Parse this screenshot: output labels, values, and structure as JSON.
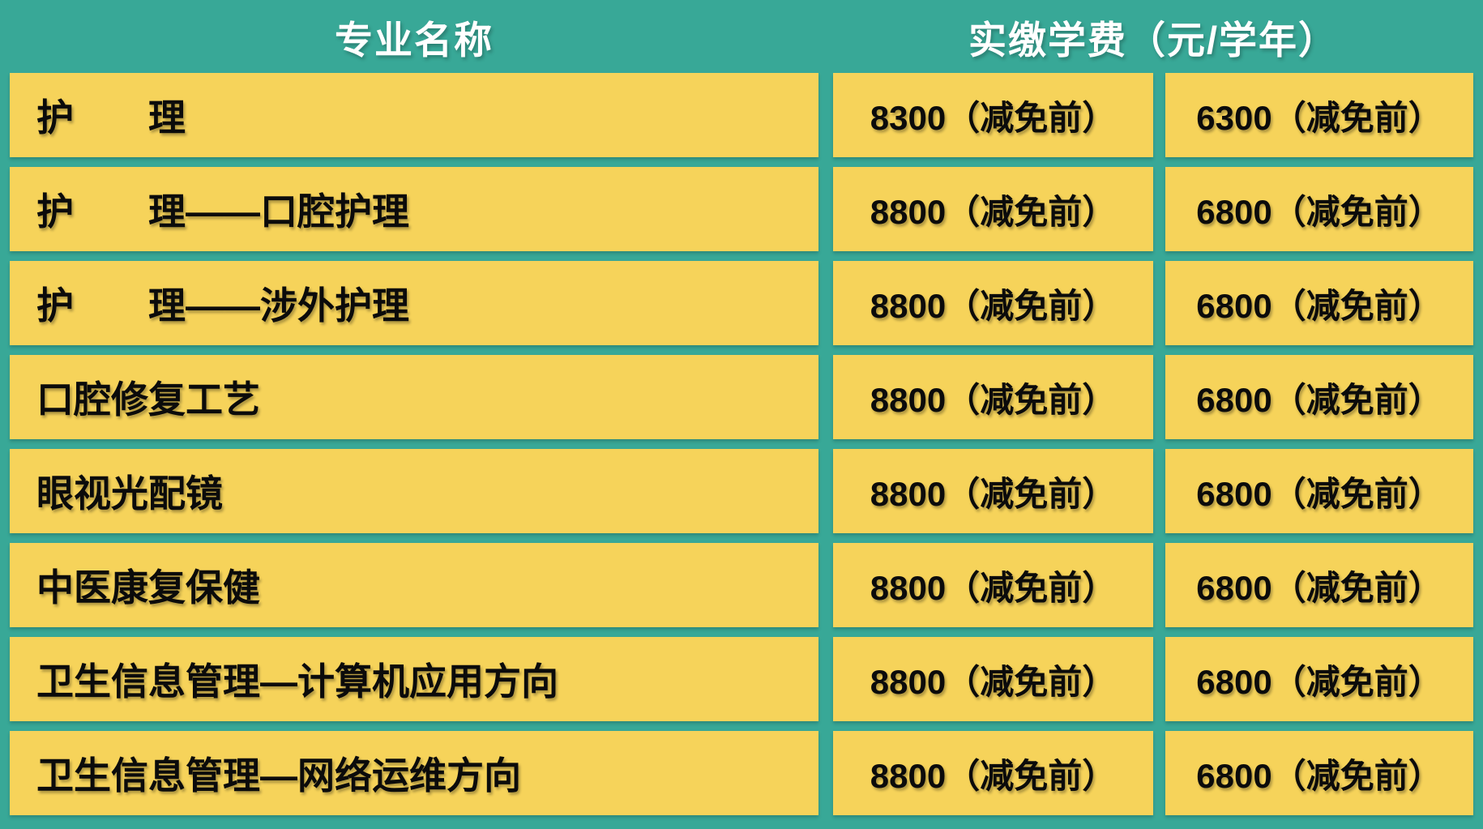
{
  "colors": {
    "background_teal": "#38A897",
    "cell_yellow": "#F6D35A",
    "header_text": "#FFFFFF",
    "cell_text": "#0B0B0B"
  },
  "table": {
    "header": {
      "major_label": "专业名称",
      "fee_label": "实缴学费（元/学年）"
    },
    "rows": [
      {
        "major": "护　　理",
        "fee_col1": "8300（减免前）",
        "fee_col2": "6300（减免前）"
      },
      {
        "major": "护　　理——口腔护理",
        "fee_col1": "8800（减免前）",
        "fee_col2": "6800（减免前）"
      },
      {
        "major": "护　　理——涉外护理",
        "fee_col1": "8800（减免前）",
        "fee_col2": "6800（减免前）"
      },
      {
        "major": "口腔修复工艺",
        "fee_col1": "8800（减免前）",
        "fee_col2": "6800（减免前）"
      },
      {
        "major": "眼视光配镜",
        "fee_col1": "8800（减免前）",
        "fee_col2": "6800（减免前）"
      },
      {
        "major": "中医康复保健",
        "fee_col1": "8800（减免前）",
        "fee_col2": "6800（减免前）"
      },
      {
        "major": "卫生信息管理—计算机应用方向",
        "fee_col1": "8800（减免前）",
        "fee_col2": "6800（减免前）"
      },
      {
        "major": "卫生信息管理—网络运维方向",
        "fee_col1": "8800（减免前）",
        "fee_col2": "6800（减免前）"
      }
    ]
  }
}
